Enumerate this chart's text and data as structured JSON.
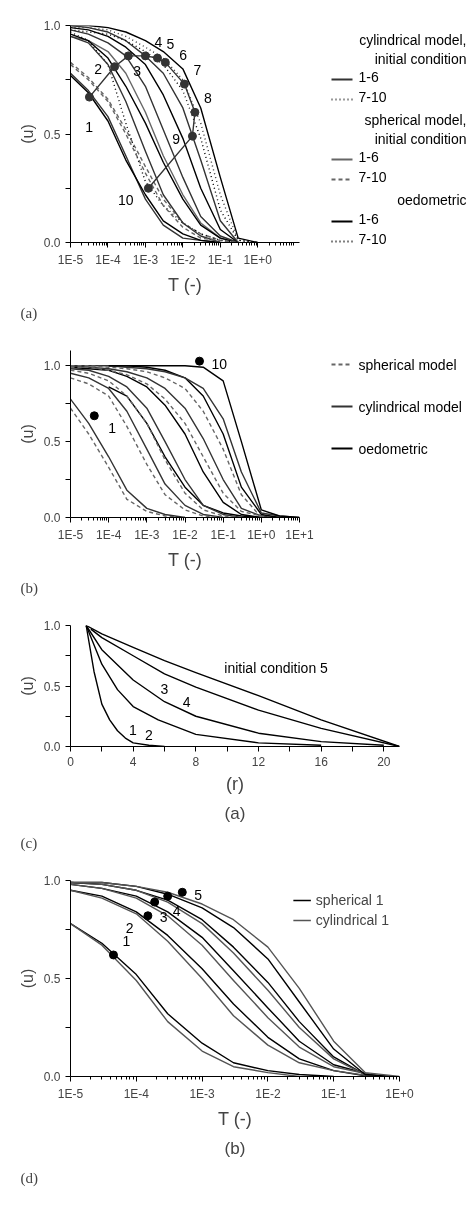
{
  "chart_data": [
    {
      "type": "line",
      "title": "(a)",
      "xlabel": "T (-)",
      "ylabel": "(u)",
      "log": "x",
      "legend": "right",
      "xlim": [
        1e-05,
        13
      ],
      "ylim": [
        0,
        1
      ],
      "xticks": [
        {
          "value": 1e-05,
          "label": "1E-5"
        },
        {
          "value": 0.0001,
          "label": "1E-4"
        },
        {
          "value": 0.001,
          "label": "1E-3"
        },
        {
          "value": 0.01,
          "label": "1E-2"
        },
        {
          "value": 0.1,
          "label": "1E-1"
        },
        {
          "value": 1,
          "label": "1E+0"
        }
      ],
      "yticks": [
        {
          "value": 0,
          "label": "0.0"
        },
        {
          "value": 0.25,
          "label": null
        },
        {
          "value": 0.5,
          "label": "0.5"
        },
        {
          "value": 0.75,
          "label": null
        },
        {
          "value": 1,
          "label": "1.0"
        }
      ],
      "x": [
        1e-05,
        3e-05,
        0.0001,
        0.0003,
        0.001,
        0.003,
        0.01,
        0.03,
        0.1,
        0.3,
        1
      ],
      "series": [
        {
          "name": "1-6",
          "color": "#333333",
          "line_style": "solid",
          "values": [
            0.78,
            0.7,
            0.58,
            0.4,
            0.2,
            0.08,
            0.02,
            0.01,
            0,
            null,
            null
          ]
        },
        {
          "name": "7-10",
          "color": "#333333",
          "line_style": "dotted",
          "values": [
            0.99,
            0.99,
            0.98,
            0.95,
            0.9,
            0.85,
            0.75,
            0.55,
            0.22,
            0.01,
            0
          ]
        },
        {
          "name": "1-6",
          "color": "#666666",
          "line_style": "solid",
          "values": [
            0.95,
            0.93,
            0.88,
            0.78,
            0.6,
            0.4,
            0.22,
            0.09,
            0.02,
            0,
            null
          ]
        },
        {
          "name": "7-10",
          "color": "#666666",
          "line_style": "dashed",
          "values": [
            0.83,
            0.76,
            0.66,
            0.52,
            0.35,
            0.2,
            0.09,
            0.04,
            0.01,
            0,
            null
          ]
        },
        {
          "name": "1-6",
          "color": "#000000",
          "line_style": "solid",
          "values": [
            1.0,
            1.0,
            0.99,
            0.97,
            0.93,
            0.88,
            0.8,
            0.62,
            0.3,
            0.02,
            0
          ]
        },
        {
          "name": "7-10",
          "color": "#000000",
          "line_style": "dotted",
          "values": [
            0.97,
            0.93,
            0.82,
            0.55,
            0.28,
            0.17,
            0.09,
            0.04,
            0.01,
            0,
            null
          ]
        },
        {
          "color": "#000000",
          "line_style": "solid",
          "values": [
            0.77,
            0.69,
            0.56,
            0.38,
            0.22,
            0.1,
            0.04,
            0.01,
            0,
            null,
            null
          ]
        },
        {
          "color": "#333333",
          "line_style": "solid",
          "values": [
            0.95,
            0.92,
            0.82,
            0.65,
            0.42,
            0.22,
            0.09,
            0.03,
            0,
            null,
            null
          ]
        },
        {
          "color": "#000000",
          "line_style": "solid",
          "values": [
            0.96,
            0.93,
            0.85,
            0.72,
            0.55,
            0.37,
            0.2,
            0.08,
            0.02,
            0,
            null
          ]
        },
        {
          "color": "#333333",
          "line_style": "solid",
          "values": [
            0.98,
            0.96,
            0.92,
            0.86,
            0.72,
            0.52,
            0.3,
            0.12,
            0.03,
            0,
            null
          ]
        },
        {
          "color": "#000000",
          "line_style": "solid",
          "values": [
            0.99,
            0.98,
            0.95,
            0.9,
            0.82,
            0.68,
            0.48,
            0.25,
            0.06,
            0,
            null
          ]
        },
        {
          "color": "#333333",
          "line_style": "solid",
          "values": [
            1.0,
            0.99,
            0.97,
            0.93,
            0.86,
            0.78,
            0.62,
            0.38,
            0.1,
            0,
            null
          ]
        },
        {
          "color": "#000000",
          "line_style": "dotted",
          "values": [
            0.98,
            0.97,
            0.96,
            0.93,
            0.88,
            0.82,
            0.7,
            0.48,
            0.15,
            0.01,
            0
          ]
        },
        {
          "color": "#666666",
          "line_style": "dashed",
          "values": [
            0.82,
            0.75,
            0.65,
            0.5,
            0.32,
            0.17,
            0.07,
            0.02,
            0.01,
            0,
            null
          ]
        },
        {
          "color": "#333333",
          "line_style": "solid",
          "marker": "circle",
          "x": [
            3.2e-05,
            0.00015,
            0.00035,
            0.001,
            0.0021,
            0.0034,
            0.011,
            0.021,
            0.018,
            0.0012
          ],
          "values": [
            0.67,
            0.81,
            0.86,
            0.86,
            0.85,
            0.83,
            0.73,
            0.6,
            0.49,
            0.25
          ]
        }
      ],
      "annotations": [
        "cylindrical model, initial condition",
        "spherical model, initial condition",
        "oedometric",
        {
          "text": "1",
          "x": 3.2e-05,
          "y": 0.67
        },
        {
          "text": "2",
          "x": 0.00015,
          "y": 0.81
        },
        {
          "text": "3",
          "x": 0.00035,
          "y": 0.86
        },
        {
          "text": "4",
          "x": 0.001,
          "y": 0.86
        },
        {
          "text": "5",
          "x": 0.0021,
          "y": 0.85
        },
        {
          "text": "6",
          "x": 0.0034,
          "y": 0.83
        },
        {
          "text": "7",
          "x": 0.011,
          "y": 0.73
        },
        {
          "text": "8",
          "x": 0.021,
          "y": 0.6
        },
        {
          "text": "9",
          "x": 0.018,
          "y": 0.49
        },
        {
          "text": "10",
          "x": 0.0012,
          "y": 0.25
        }
      ]
    },
    {
      "type": "line",
      "title": "(b)",
      "xlabel": "T (-)",
      "ylabel": "(u)",
      "log": "x",
      "legend": "right",
      "xlim": [
        1e-05,
        10
      ],
      "ylim": [
        0,
        1.1
      ],
      "xticks": [
        {
          "value": 1e-05,
          "label": "1E-5"
        },
        {
          "value": 0.0001,
          "label": "1E-4"
        },
        {
          "value": 0.001,
          "label": "1E-3"
        },
        {
          "value": 0.01,
          "label": "1E-2"
        },
        {
          "value": 0.1,
          "label": "1E-1"
        },
        {
          "value": 1,
          "label": "1E+0"
        },
        {
          "value": 10,
          "label": "1E+1"
        }
      ],
      "yticks": [
        {
          "value": 0,
          "label": "0.0"
        },
        {
          "value": 0.25,
          "label": null
        },
        {
          "value": 0.5,
          "label": "0.5"
        },
        {
          "value": 0.75,
          "label": null
        },
        {
          "value": 1,
          "label": "1.0"
        }
      ],
      "x": [
        1e-05,
        3e-05,
        0.0001,
        0.0003,
        0.001,
        0.003,
        0.01,
        0.03,
        0.1,
        0.3,
        1,
        3,
        10
      ],
      "series": [
        {
          "name": "spherical model",
          "color": "#666666",
          "line_style": "dashed",
          "values": [
            0.72,
            0.55,
            0.33,
            0.12,
            0.04,
            0.01,
            0,
            null,
            null,
            null,
            null,
            null,
            null
          ]
        },
        {
          "name": "cylindrical model",
          "color": "#333333",
          "line_style": "solid",
          "values": [
            0.78,
            0.62,
            0.4,
            0.18,
            0.06,
            0.02,
            0,
            null,
            null,
            null,
            null,
            null,
            null
          ]
        },
        {
          "name": "oedometric",
          "color": "#000000",
          "line_style": "solid",
          "values": [
            null,
            null,
            0.86,
            0.8,
            0.62,
            0.4,
            0.2,
            0.08,
            0.03,
            0.01,
            0,
            null,
            null
          ]
        },
        {
          "color": "#333333",
          "line_style": "solid",
          "values": [
            0.95,
            0.92,
            0.85,
            0.7,
            0.45,
            0.22,
            0.08,
            0.02,
            0,
            null,
            null,
            null,
            null
          ]
        },
        {
          "color": "#666666",
          "line_style": "dashed",
          "values": [
            0.92,
            0.88,
            0.8,
            0.6,
            0.35,
            0.15,
            0.05,
            0.01,
            0,
            null,
            null,
            null,
            null
          ]
        },
        {
          "color": "#333333",
          "line_style": "solid",
          "values": [
            0.98,
            0.97,
            0.93,
            0.86,
            0.72,
            0.5,
            0.25,
            0.08,
            0.02,
            0,
            null,
            null,
            null
          ]
        },
        {
          "color": "#666666",
          "line_style": "dashed",
          "values": [
            0.97,
            0.95,
            0.9,
            0.8,
            0.62,
            0.38,
            0.16,
            0.05,
            0.01,
            0,
            null,
            null,
            null
          ]
        },
        {
          "color": "#000000",
          "line_style": "solid",
          "values": [
            0.99,
            0.98,
            0.97,
            0.93,
            0.86,
            0.74,
            0.55,
            0.3,
            0.1,
            0.02,
            0,
            null,
            null
          ]
        },
        {
          "color": "#333333",
          "line_style": "solid",
          "values": [
            1.0,
            0.99,
            0.98,
            0.96,
            0.92,
            0.85,
            0.72,
            0.52,
            0.25,
            0.06,
            0.01,
            0,
            null
          ]
        },
        {
          "color": "#666666",
          "line_style": "dashed",
          "values": [
            0.99,
            0.99,
            0.97,
            0.94,
            0.88,
            0.78,
            0.62,
            0.4,
            0.16,
            0.04,
            0.01,
            0,
            null
          ]
        },
        {
          "color": "#000000",
          "line_style": "solid",
          "values": [
            null,
            null,
            1.0,
            1.0,
            0.99,
            0.97,
            0.92,
            0.8,
            0.55,
            0.2,
            0.02,
            0,
            null
          ]
        },
        {
          "color": "#333333",
          "line_style": "solid",
          "values": [
            1.0,
            1.0,
            1.0,
            0.99,
            0.98,
            0.96,
            0.92,
            0.85,
            0.65,
            0.3,
            0.03,
            0.01,
            0
          ]
        },
        {
          "color": "#666666",
          "line_style": "dashed",
          "values": [
            1.0,
            1.0,
            0.99,
            0.98,
            0.96,
            0.92,
            0.85,
            0.7,
            0.45,
            0.15,
            0,
            null,
            null
          ]
        },
        {
          "color": "#000000",
          "line_style": "solid",
          "values": [
            null,
            null,
            1.0,
            1.0,
            1.0,
            1.0,
            1.0,
            0.99,
            0.9,
            0.5,
            0.05,
            0.01,
            0
          ]
        },
        {
          "type": "scatter",
          "color": "#000000",
          "marker": "circle",
          "x": [
            4.2e-05,
            0.024
          ],
          "values": [
            0.67,
            1.03
          ]
        }
      ],
      "annotations": [
        {
          "text": "1",
          "x": 4.2e-05,
          "y": 0.67
        },
        {
          "text": "10",
          "x": 0.024,
          "y": 1.03
        }
      ]
    },
    {
      "type": "line",
      "title": "(c)",
      "subtitle": "(a)",
      "xlabel": "(r)",
      "ylabel": "(u)",
      "xlim": [
        0,
        21
      ],
      "ylim": [
        0,
        1
      ],
      "xticks": [
        0,
        {
          "value": 2,
          "label": null
        },
        4,
        {
          "value": 6,
          "label": null
        },
        8,
        {
          "value": 10,
          "label": null
        },
        12,
        {
          "value": 14,
          "label": null
        },
        16,
        {
          "value": 18,
          "label": null
        },
        20
      ],
      "yticks": [
        {
          "value": 0,
          "label": "0.0"
        },
        {
          "value": 0.25,
          "label": null
        },
        {
          "value": 0.5,
          "label": "0.5"
        },
        {
          "value": 0.75,
          "label": null
        },
        {
          "value": 1,
          "label": "1.0"
        }
      ],
      "series": [
        {
          "color": "#000000",
          "x": [
            1,
            1.5,
            2,
            2.5,
            3,
            3.5,
            4,
            5,
            6
          ],
          "values": [
            1,
            0.62,
            0.35,
            0.22,
            0.13,
            0.07,
            0.03,
            0.01,
            0
          ]
        },
        {
          "color": "#000000",
          "x": [
            1,
            2,
            3,
            4,
            5.6,
            8,
            12,
            16
          ],
          "values": [
            1,
            0.68,
            0.47,
            0.33,
            0.22,
            0.1,
            0.03,
            0.01
          ]
        },
        {
          "color": "#000000",
          "x": [
            1,
            2,
            4,
            6,
            8,
            12,
            16,
            20
          ],
          "values": [
            1,
            0.8,
            0.55,
            0.37,
            0.25,
            0.11,
            0.04,
            0.01
          ]
        },
        {
          "color": "#000000",
          "x": [
            1.3,
            2,
            4,
            6,
            8,
            12,
            16,
            21
          ],
          "values": [
            0.97,
            0.9,
            0.75,
            0.6,
            0.49,
            0.3,
            0.15,
            0
          ]
        },
        {
          "color": "#000000",
          "x": [
            1,
            2,
            4,
            6,
            8,
            12,
            16,
            21
          ],
          "values": [
            1,
            0.93,
            0.82,
            0.71,
            0.61,
            0.42,
            0.22,
            0
          ]
        }
      ],
      "annotations": [
        {
          "text": "initial condition 5",
          "x": 9.5,
          "y": 0.54
        },
        {
          "text": "4",
          "x": 8,
          "y": 0.49
        },
        {
          "text": "3",
          "x": 6,
          "y": 0.37
        },
        {
          "text": "2",
          "x": 5.6,
          "y": 0.22
        },
        {
          "text": "1",
          "x": 4,
          "y": 0.03
        }
      ]
    },
    {
      "type": "line",
      "title": "(d)",
      "subtitle": "(b)",
      "xlabel": "T (-)",
      "ylabel": "(u)",
      "log": "x",
      "legend": "top right",
      "xlim": [
        1e-05,
        1
      ],
      "ylim": [
        0,
        1
      ],
      "xticks": [
        {
          "value": 1e-05,
          "label": "1E-5"
        },
        {
          "value": 0.0001,
          "label": "1E-4"
        },
        {
          "value": 0.001,
          "label": "1E-3"
        },
        {
          "value": 0.01,
          "label": "1E-2"
        },
        {
          "value": 0.1,
          "label": "1E-1"
        },
        {
          "value": 1,
          "label": "1E+0"
        }
      ],
      "yticks": [
        {
          "value": 0,
          "label": "0.0"
        },
        {
          "value": 0.25,
          "label": null
        },
        {
          "value": 0.5,
          "label": "0.5"
        },
        {
          "value": 0.75,
          "label": null
        },
        {
          "value": 1,
          "label": "1.0"
        }
      ],
      "x": [
        1e-05,
        3e-05,
        0.0001,
        0.0003,
        0.001,
        0.003,
        0.01,
        0.03,
        0.1
      ],
      "series": [
        {
          "name": "spherical 1",
          "color": "#000000",
          "values": [
            0.78,
            0.68,
            0.52,
            0.32,
            0.17,
            0.07,
            0.03,
            0.01,
            0
          ]
        },
        {
          "name": "cylindrical 1",
          "color": "#555555",
          "values": [
            0.78,
            0.67,
            0.49,
            0.28,
            0.13,
            0.05,
            0.02,
            0,
            null
          ]
        },
        {
          "color": "#000000",
          "x": [
            1e-05,
            3e-05,
            0.0001,
            0.0003,
            0.001,
            0.003,
            0.01,
            0.03,
            0.1,
            0.35
          ],
          "values": [
            0.95,
            0.92,
            0.84,
            0.72,
            0.55,
            0.37,
            0.2,
            0.09,
            0.03,
            0
          ]
        },
        {
          "color": "#555555",
          "x": [
            1e-05,
            3e-05,
            0.0001,
            0.0003,
            0.001,
            0.003,
            0.01,
            0.03,
            0.1,
            0.4
          ],
          "values": [
            0.95,
            0.91,
            0.83,
            0.69,
            0.5,
            0.31,
            0.16,
            0.07,
            0.03,
            0
          ]
        },
        {
          "color": "#000000",
          "x": [
            1e-05,
            3e-05,
            0.0001,
            0.0003,
            0.001,
            0.003,
            0.01,
            0.03,
            0.1,
            0.45
          ],
          "values": [
            0.98,
            0.96,
            0.92,
            0.84,
            0.71,
            0.54,
            0.35,
            0.18,
            0.06,
            0
          ]
        },
        {
          "color": "#555555",
          "x": [
            1e-05,
            3e-05,
            0.0001,
            0.0003,
            0.001,
            0.003,
            0.01,
            0.03,
            0.1,
            0.5
          ],
          "values": [
            0.98,
            0.96,
            0.91,
            0.82,
            0.67,
            0.49,
            0.3,
            0.15,
            0.05,
            0
          ]
        },
        {
          "color": "#000000",
          "x": [
            1e-05,
            3e-05,
            0.0001,
            0.0003,
            0.001,
            0.003,
            0.01,
            0.03,
            0.1,
            0.3,
            0.6
          ],
          "values": [
            0.99,
            0.98,
            0.95,
            0.9,
            0.8,
            0.66,
            0.48,
            0.28,
            0.1,
            0.01,
            0
          ]
        },
        {
          "color": "#555555",
          "x": [
            1e-05,
            3e-05,
            0.0001,
            0.0003,
            0.001,
            0.003,
            0.01,
            0.03,
            0.1,
            0.3,
            0.7
          ],
          "values": [
            0.99,
            0.98,
            0.95,
            0.89,
            0.78,
            0.63,
            0.44,
            0.25,
            0.09,
            0.01,
            0
          ]
        },
        {
          "color": "#000000",
          "x": [
            1e-05,
            3e-05,
            0.0001,
            0.0003,
            0.001,
            0.003,
            0.01,
            0.03,
            0.1,
            0.3,
            0.8
          ],
          "values": [
            0.99,
            0.99,
            0.97,
            0.93,
            0.86,
            0.76,
            0.6,
            0.38,
            0.14,
            0.01,
            0
          ]
        },
        {
          "color": "#555555",
          "x": [
            1e-05,
            3e-05,
            0.0001,
            0.0003,
            0.001,
            0.003,
            0.01,
            0.03,
            0.1,
            0.3,
            1
          ],
          "values": [
            0.99,
            0.99,
            0.97,
            0.94,
            0.88,
            0.8,
            0.66,
            0.45,
            0.18,
            0.02,
            0
          ]
        },
        {
          "type": "scatter",
          "color": "#000000",
          "marker": "circle",
          "x": [
            4.5e-05,
            0.00015,
            0.00019,
            0.0003,
            0.0005
          ],
          "values": [
            0.62,
            0.82,
            0.89,
            0.92,
            0.94
          ]
        }
      ],
      "annotations": [
        {
          "text": "1",
          "x": 4.5e-05,
          "y": 0.62
        },
        {
          "text": "2",
          "x": 0.00015,
          "y": 0.82
        },
        {
          "text": "3",
          "x": 0.00019,
          "y": 0.89
        },
        {
          "text": "4",
          "x": 0.0003,
          "y": 0.92
        },
        {
          "text": "5",
          "x": 0.0005,
          "y": 0.94
        }
      ]
    }
  ]
}
